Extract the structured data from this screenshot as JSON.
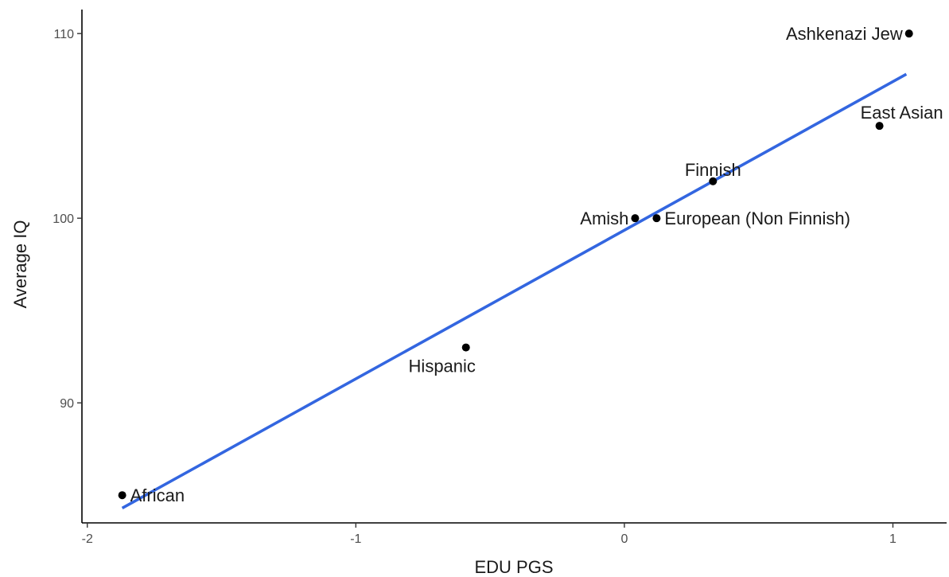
{
  "chart_data": {
    "type": "scatter",
    "title": "",
    "xlabel": "EDU PGS",
    "ylabel": "Average IQ",
    "xlim": [
      -2.02,
      1.2
    ],
    "ylim": [
      83.5,
      111.3
    ],
    "xticks": [
      -2,
      -1,
      0,
      1
    ],
    "yticks": [
      90,
      100,
      110
    ],
    "xtick_labels": [
      "-2",
      "-1",
      "0",
      "1"
    ],
    "ytick_labels": [
      "90",
      "100",
      "110"
    ],
    "grid": false,
    "points": [
      {
        "label": "African",
        "x": -1.87,
        "y": 85,
        "label_side": "right"
      },
      {
        "label": "Hispanic",
        "x": -0.59,
        "y": 93,
        "label_side": "below"
      },
      {
        "label": "Amish",
        "x": 0.04,
        "y": 100,
        "label_side": "left"
      },
      {
        "label": "European (Non Finnish)",
        "x": 0.12,
        "y": 100,
        "label_side": "right"
      },
      {
        "label": "Finnish",
        "x": 0.33,
        "y": 102,
        "label_side": "above"
      },
      {
        "label": "East Asian",
        "x": 0.95,
        "y": 105,
        "label_side": "above-right"
      },
      {
        "label": "Ashkenazi Jew",
        "x": 1.06,
        "y": 110,
        "label_side": "left"
      }
    ],
    "fit_line": {
      "x": [
        -1.87,
        1.05
      ],
      "y": [
        84.3,
        107.8
      ],
      "color": "#3366e0"
    },
    "colors": {
      "points": "#000000",
      "axis": "#000000",
      "fit": "#3366e0"
    }
  }
}
